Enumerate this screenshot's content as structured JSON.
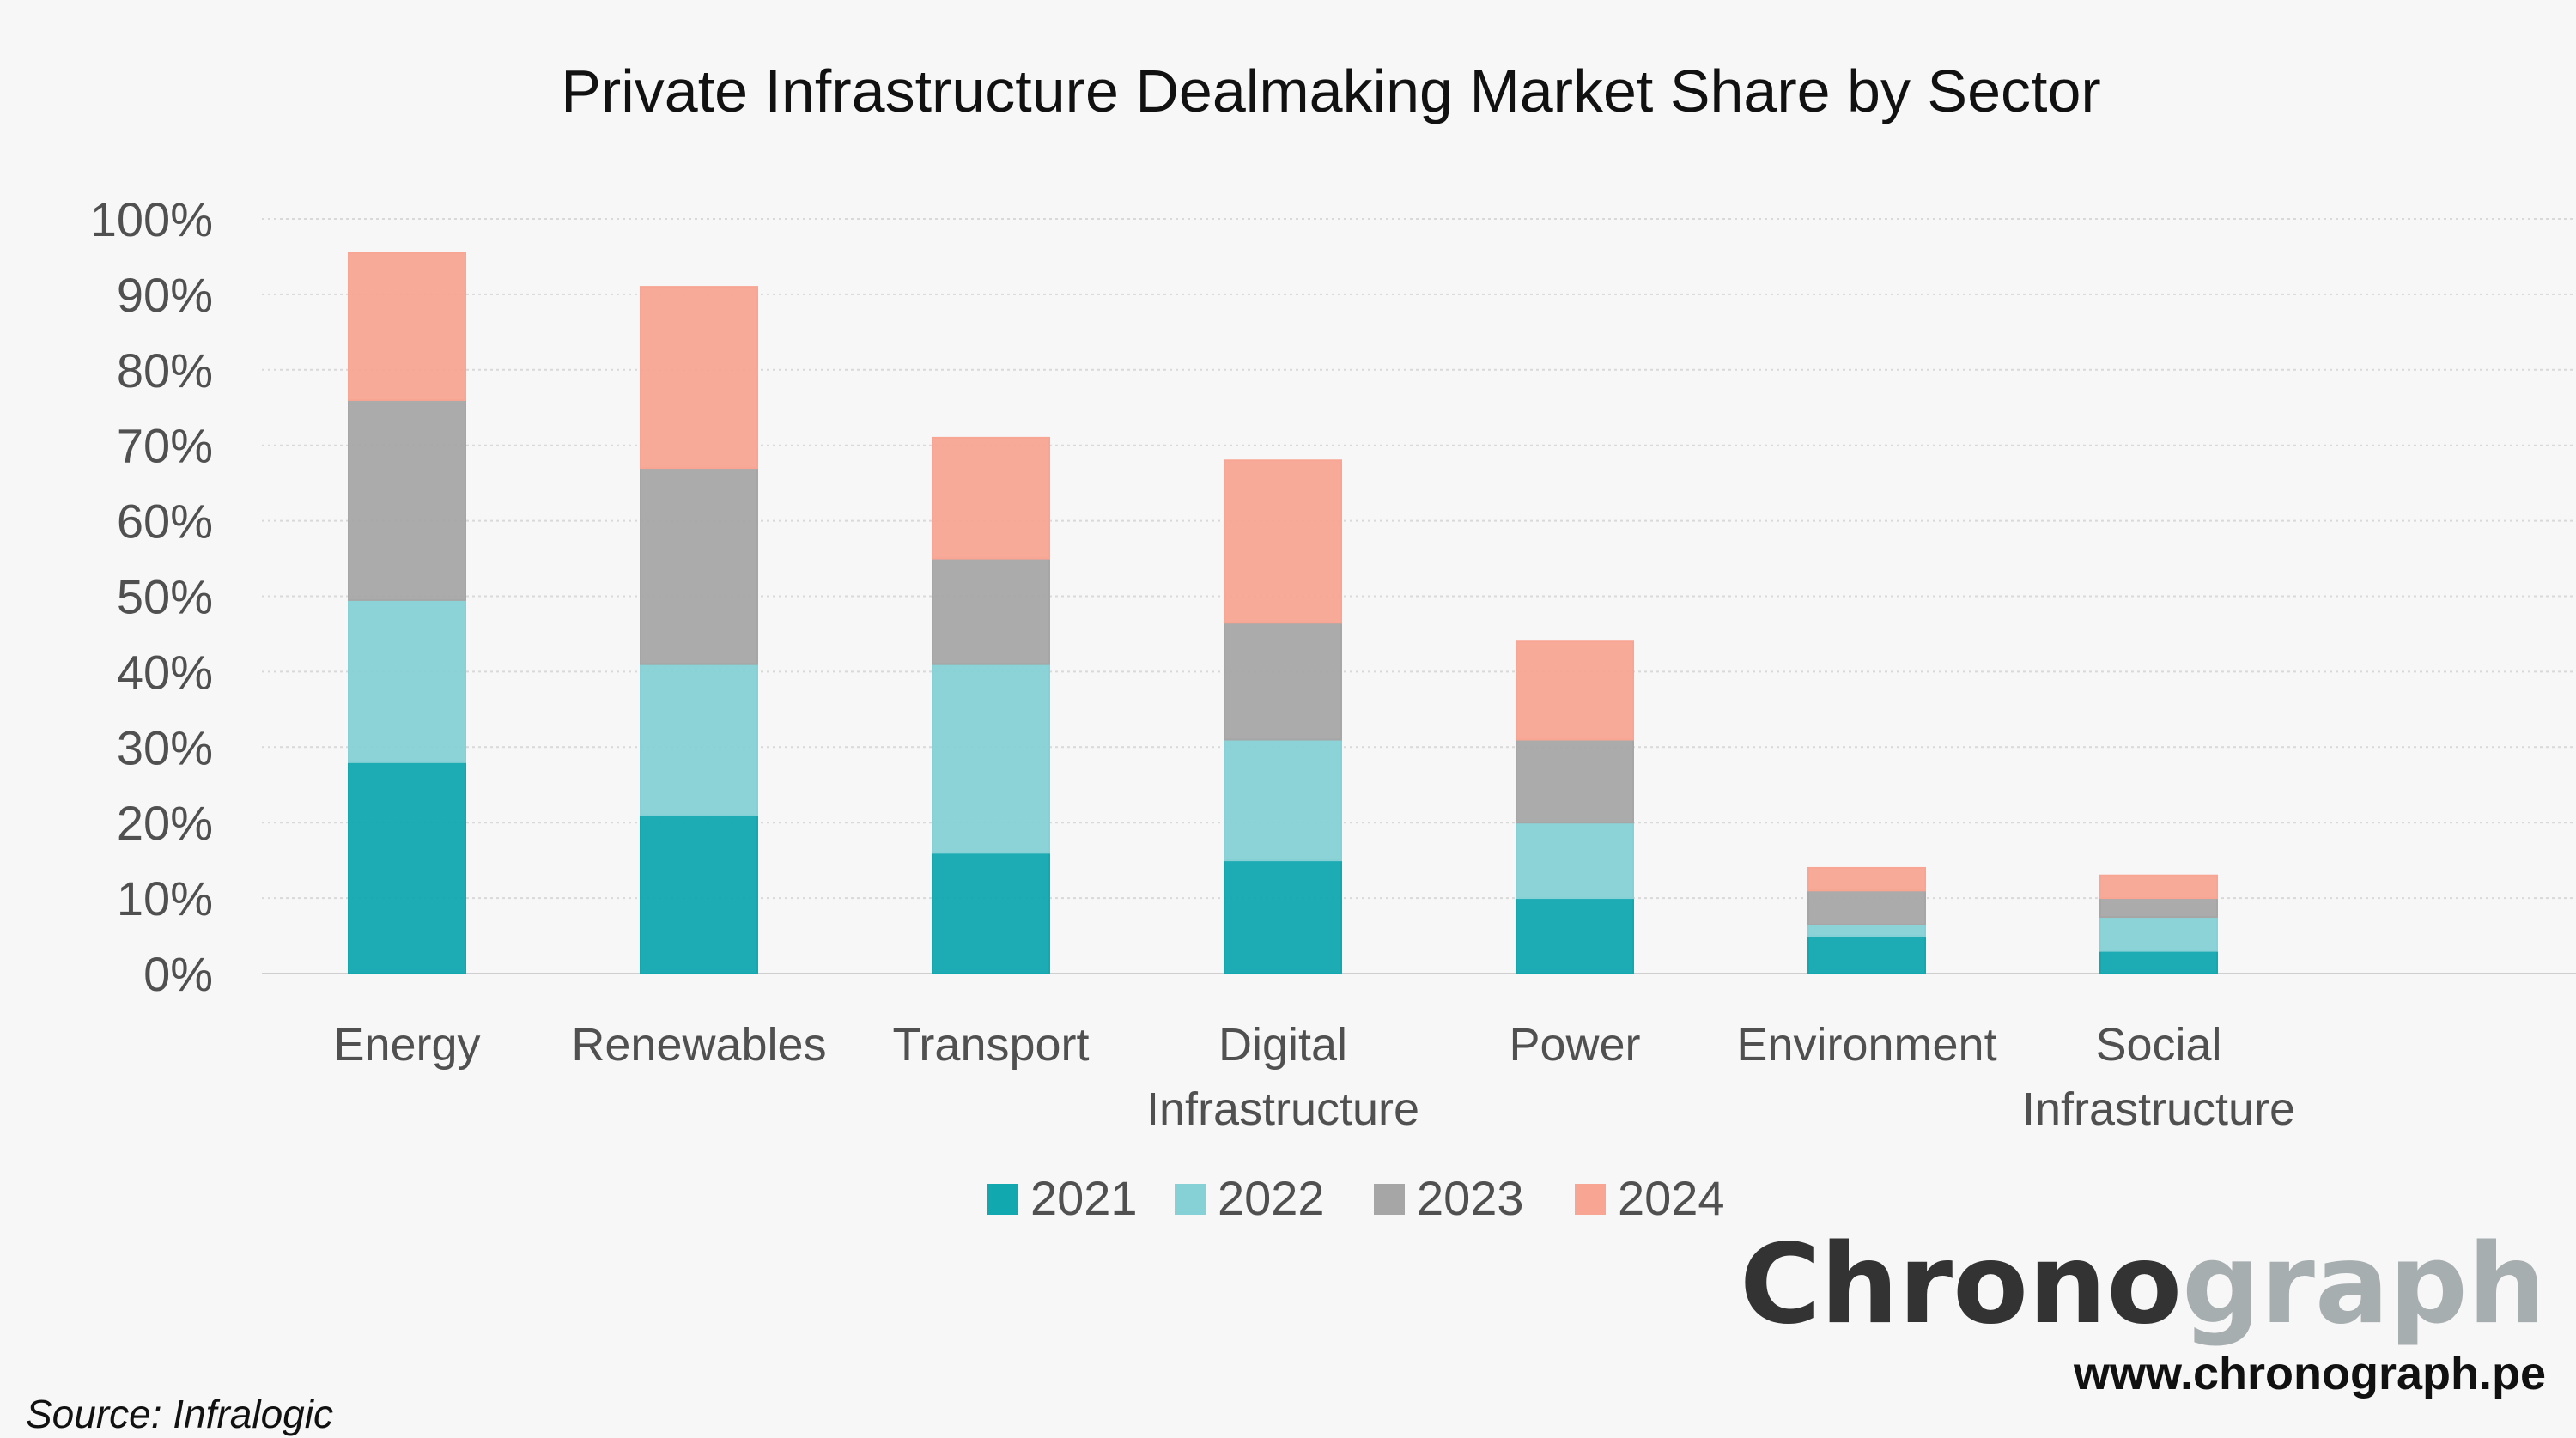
{
  "chart_data": {
    "type": "bar",
    "stacked": true,
    "title": "Private Infrastructure Dealmaking Market Share by Sector",
    "categories": [
      [
        "Energy"
      ],
      [
        "Renewables"
      ],
      [
        "Transport"
      ],
      [
        "Digital",
        "Infrastructure"
      ],
      [
        "Power"
      ],
      [
        "Environment"
      ],
      [
        "Social",
        "Infrastructure"
      ]
    ],
    "series": [
      {
        "name": "2021",
        "color": "#12a8b0",
        "values": [
          28,
          21,
          16,
          15,
          10,
          5,
          3
        ]
      },
      {
        "name": "2022",
        "color": "#86d1d5",
        "values": [
          21.5,
          20,
          25,
          16,
          10,
          1.5,
          4.5
        ]
      },
      {
        "name": "2023",
        "color": "#a6a6a6",
        "values": [
          26.5,
          26,
          14,
          15.5,
          11,
          4.5,
          2.5
        ]
      },
      {
        "name": "2024",
        "color": "#f8a594",
        "values": [
          19.5,
          24,
          16,
          21.5,
          13,
          3,
          3
        ]
      }
    ],
    "ylim": [
      0,
      100
    ],
    "yticks": [
      "0%",
      "10%",
      "20%",
      "30%",
      "40%",
      "50%",
      "60%",
      "70%",
      "80%",
      "90%",
      "100%"
    ],
    "grid": true,
    "legend": "bottom"
  },
  "brand": {
    "name_dark": "Chrono",
    "name_light": "graph",
    "url": "www.chronograph.pe"
  },
  "source": "Source: Infralogic"
}
